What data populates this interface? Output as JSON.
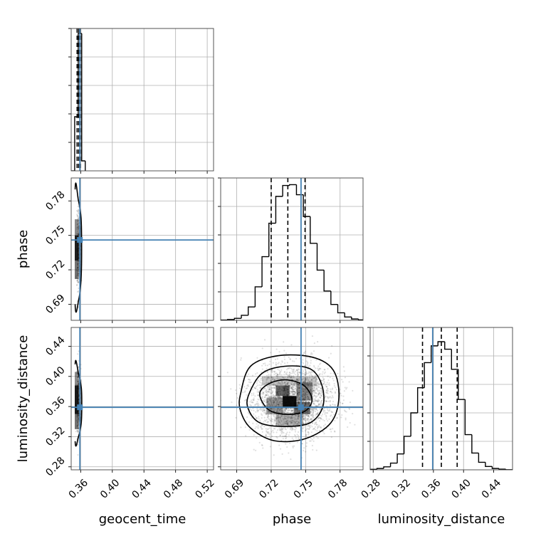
{
  "chart_data": {
    "type": "corner",
    "parameters": [
      "geocent_time",
      "phase",
      "luminosity_distance"
    ],
    "truth_color": "#4682b4",
    "truths": {
      "geocent_time": 0.359,
      "phase": 0.746,
      "luminosity_distance": 0.359
    },
    "axes": {
      "geocent_time": {
        "range": [
          0.348,
          0.528
        ],
        "ticks": [
          0.36,
          0.4,
          0.44,
          0.48,
          0.52
        ],
        "tick_labels": [
          "0.36",
          "0.40",
          "0.44",
          "0.48",
          "0.52"
        ]
      },
      "phase": {
        "range": [
          0.676,
          0.8
        ],
        "ticks": [
          0.69,
          0.72,
          0.75,
          0.78
        ],
        "tick_labels": [
          "0.69",
          "0.72",
          "0.75",
          "0.78"
        ]
      },
      "luminosity_distance": {
        "range": [
          0.276,
          0.465
        ],
        "ticks": [
          0.28,
          0.32,
          0.36,
          0.4,
          0.44
        ],
        "tick_labels": [
          "0.28",
          "0.32",
          "0.36",
          "0.40",
          "0.44"
        ]
      }
    },
    "histograms": {
      "geocent_time": {
        "bin_edges": [
          0.348,
          0.3524,
          0.3569,
          0.3613,
          0.3658
        ],
        "counts": [
          0,
          3800,
          9650,
          700
        ],
        "ylim": [
          0,
          10000
        ],
        "quantiles": [
          0.3555,
          0.3575,
          0.3595
        ]
      },
      "phase": {
        "bin_edges": [
          0.676,
          0.682,
          0.688,
          0.694,
          0.7,
          0.706,
          0.712,
          0.718,
          0.724,
          0.73,
          0.736,
          0.742,
          0.748,
          0.754,
          0.76,
          0.766,
          0.772,
          0.778,
          0.784,
          0.79,
          0.796,
          0.8
        ],
        "counts": [
          2,
          5,
          12,
          30,
          80,
          200,
          380,
          580,
          740,
          805,
          810,
          750,
          620,
          460,
          300,
          175,
          95,
          45,
          20,
          8,
          3
        ],
        "ylim": [
          0,
          850
        ],
        "quantiles": [
          0.72,
          0.7345,
          0.7495
        ]
      },
      "luminosity_distance": {
        "bin_edges": [
          0.276,
          0.285,
          0.294,
          0.303,
          0.312,
          0.321,
          0.33,
          0.339,
          0.348,
          0.357,
          0.366,
          0.375,
          0.384,
          0.393,
          0.402,
          0.411,
          0.42,
          0.429,
          0.438,
          0.447,
          0.456,
          0.465
        ],
        "counts": [
          3,
          8,
          18,
          40,
          95,
          200,
          340,
          490,
          640,
          740,
          765,
          720,
          600,
          420,
          210,
          100,
          45,
          20,
          8,
          4,
          1
        ],
        "ylim": [
          0,
          850
        ],
        "quantiles": [
          0.3455,
          0.3705,
          0.3915
        ]
      }
    },
    "pairs": [
      {
        "x": "geocent_time",
        "y": "phase",
        "seed": 7,
        "scatter": {
          "mean": [
            0.3573,
            0.738
          ],
          "sd": [
            0.0012,
            0.018
          ],
          "n": 320
        },
        "density": [
          {
            "x": [
              0.3525,
              0.3575
            ],
            "y": [
              0.728,
              0.75
            ],
            "level": 0.88
          },
          {
            "x": [
              0.3525,
              0.3575
            ],
            "y": [
              0.712,
              0.728
            ],
            "level": 0.55
          },
          {
            "x": [
              0.3525,
              0.3575
            ],
            "y": [
              0.75,
              0.764
            ],
            "level": 0.45
          },
          {
            "x": [
              0.3575,
              0.361
            ],
            "y": [
              0.718,
              0.758
            ],
            "level": 0.3
          }
        ],
        "contours": [
          [
            [
              0.353,
              0.79
            ],
            [
              0.357,
              0.781
            ],
            [
              0.3605,
              0.765
            ],
            [
              0.3612,
              0.738
            ],
            [
              0.3605,
              0.712
            ],
            [
              0.3575,
              0.694
            ],
            [
              0.353,
              0.69
            ]
          ]
        ]
      },
      {
        "x": "geocent_time",
        "y": "luminosity_distance",
        "seed": 11,
        "scatter": {
          "mean": [
            0.3573,
            0.368
          ],
          "sd": [
            0.0012,
            0.024
          ],
          "n": 320
        },
        "density": [
          {
            "x": [
              0.3525,
              0.3575
            ],
            "y": [
              0.35,
              0.388
            ],
            "level": 0.9
          },
          {
            "x": [
              0.3525,
              0.3575
            ],
            "y": [
              0.33,
              0.35
            ],
            "level": 0.55
          },
          {
            "x": [
              0.3525,
              0.3575
            ],
            "y": [
              0.388,
              0.406
            ],
            "level": 0.45
          },
          {
            "x": [
              0.3575,
              0.361
            ],
            "y": [
              0.34,
              0.396
            ],
            "level": 0.3
          }
        ],
        "contours": [
          [
            [
              0.353,
              0.416
            ],
            [
              0.3572,
              0.404
            ],
            [
              0.3608,
              0.385
            ],
            [
              0.3614,
              0.362
            ],
            [
              0.3607,
              0.338
            ],
            [
              0.3572,
              0.32
            ],
            [
              0.353,
              0.314
            ]
          ]
        ]
      },
      {
        "x": "phase",
        "y": "luminosity_distance",
        "seed": 23,
        "scatter": {
          "mean": [
            0.7385,
            0.368
          ],
          "sd": [
            0.018,
            0.024
          ],
          "n": 2600
        },
        "density": [
          {
            "x": [
              0.73,
              0.742
            ],
            "y": [
              0.358,
              0.374
            ],
            "level": 0.95
          },
          {
            "x": [
              0.724,
              0.736
            ],
            "y": [
              0.374,
              0.388
            ],
            "level": 0.6
          },
          {
            "x": [
              0.74,
              0.754
            ],
            "y": [
              0.35,
              0.366
            ],
            "level": 0.55
          },
          {
            "x": [
              0.716,
              0.73
            ],
            "y": [
              0.35,
              0.372
            ],
            "level": 0.4
          },
          {
            "x": [
              0.742,
              0.756
            ],
            "y": [
              0.368,
              0.392
            ],
            "level": 0.42
          },
          {
            "x": [
              0.724,
              0.748
            ],
            "y": [
              0.334,
              0.352
            ],
            "level": 0.3
          },
          {
            "x": [
              0.712,
              0.76
            ],
            "y": [
              0.388,
              0.4
            ],
            "level": 0.22
          }
        ],
        "contours": [
          [
            [
              0.71,
              0.376
            ],
            [
              0.717,
              0.3895
            ],
            [
              0.732,
              0.3955
            ],
            [
              0.748,
              0.3885
            ],
            [
              0.7555,
              0.37
            ],
            [
              0.75,
              0.3545
            ],
            [
              0.735,
              0.3495
            ],
            [
              0.718,
              0.3555
            ]
          ],
          [
            [
              0.7005,
              0.376
            ],
            [
              0.712,
              0.404
            ],
            [
              0.732,
              0.4135
            ],
            [
              0.754,
              0.41
            ],
            [
              0.764,
              0.389
            ],
            [
              0.765,
              0.36
            ],
            [
              0.754,
              0.3385
            ],
            [
              0.732,
              0.3335
            ],
            [
              0.71,
              0.3385
            ],
            [
              0.7,
              0.357
            ]
          ],
          [
            [
              0.6935,
              0.378
            ],
            [
              0.702,
              0.4135
            ],
            [
              0.726,
              0.4275
            ],
            [
              0.756,
              0.4255
            ],
            [
              0.774,
              0.4085
            ],
            [
              0.779,
              0.373
            ],
            [
              0.772,
              0.3385
            ],
            [
              0.75,
              0.3175
            ],
            [
              0.723,
              0.3145
            ],
            [
              0.702,
              0.3315
            ],
            [
              0.693,
              0.356
            ]
          ]
        ]
      }
    ]
  }
}
